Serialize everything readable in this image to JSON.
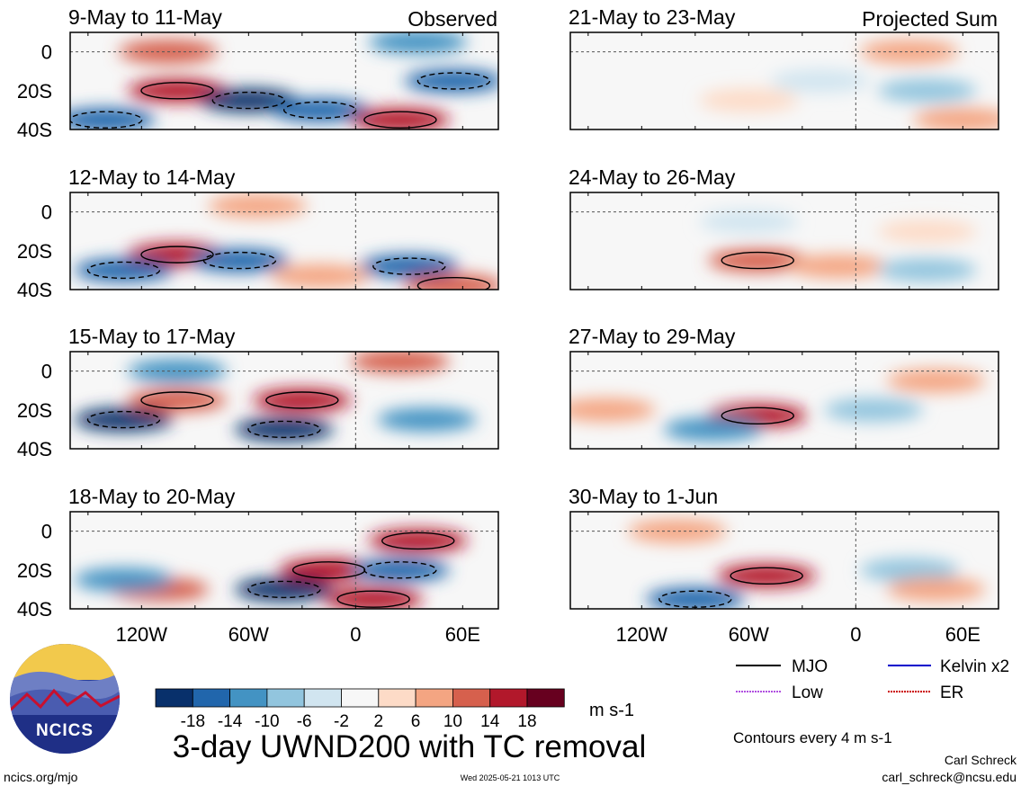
{
  "panels_left_label": "Observed",
  "panels_right_label": "Projected Sum",
  "chart_data": [
    {
      "type": "heatmap",
      "title": "9-May to 11-May",
      "corner_label": "Observed",
      "column": "left",
      "row": 0,
      "yticks": [
        "0",
        "20S",
        "40S"
      ],
      "xticks": [],
      "features": [
        {
          "lon": -105,
          "lat": 0,
          "value": 12
        },
        {
          "lon": -100,
          "lat": -20,
          "value": 16
        },
        {
          "lon": -60,
          "lat": -25,
          "value": -18
        },
        {
          "lon": -20,
          "lat": -30,
          "value": -16
        },
        {
          "lon": 25,
          "lat": -35,
          "value": 18
        },
        {
          "lon": 35,
          "lat": 5,
          "value": -12
        },
        {
          "lon": 55,
          "lat": -15,
          "value": -16
        },
        {
          "lon": -140,
          "lat": -35,
          "value": -14
        }
      ]
    },
    {
      "type": "heatmap",
      "title": "12-May to 14-May",
      "column": "left",
      "row": 1,
      "yticks": [
        "0",
        "20S",
        "40S"
      ],
      "xticks": [],
      "features": [
        {
          "lon": -100,
          "lat": -22,
          "value": 18
        },
        {
          "lon": -130,
          "lat": -30,
          "value": -16
        },
        {
          "lon": -65,
          "lat": -25,
          "value": -14
        },
        {
          "lon": -55,
          "lat": 3,
          "value": 10
        },
        {
          "lon": 30,
          "lat": -28,
          "value": -16
        },
        {
          "lon": 55,
          "lat": -38,
          "value": 14
        },
        {
          "lon": -20,
          "lat": -33,
          "value": 10
        }
      ]
    },
    {
      "type": "heatmap",
      "title": "15-May to 17-May",
      "column": "left",
      "row": 2,
      "yticks": [
        "0",
        "20S",
        "40S"
      ],
      "xticks": [],
      "features": [
        {
          "lon": -130,
          "lat": -25,
          "value": -18
        },
        {
          "lon": -100,
          "lat": -15,
          "value": 14
        },
        {
          "lon": -30,
          "lat": -15,
          "value": 18
        },
        {
          "lon": -40,
          "lat": -30,
          "value": -18
        },
        {
          "lon": 25,
          "lat": 5,
          "value": 12
        },
        {
          "lon": 40,
          "lat": -25,
          "value": -12
        },
        {
          "lon": -100,
          "lat": 0,
          "value": -10
        }
      ]
    },
    {
      "type": "heatmap",
      "title": "18-May to 20-May",
      "column": "left",
      "row": 3,
      "yticks": [
        "0",
        "20S",
        "40S"
      ],
      "xticks": [
        "120W",
        "60W",
        "0",
        "60E"
      ],
      "features": [
        {
          "lon": -15,
          "lat": -20,
          "value": 18
        },
        {
          "lon": -40,
          "lat": -30,
          "value": -18
        },
        {
          "lon": 35,
          "lat": -5,
          "value": 16
        },
        {
          "lon": 25,
          "lat": -20,
          "value": -14
        },
        {
          "lon": -110,
          "lat": -30,
          "value": 12
        },
        {
          "lon": -130,
          "lat": -25,
          "value": -10
        },
        {
          "lon": 10,
          "lat": -35,
          "value": 16
        }
      ]
    },
    {
      "type": "heatmap",
      "title": "21-May to 23-May",
      "corner_label": "Projected Sum",
      "column": "right",
      "row": 0,
      "yticks": [],
      "xticks": [],
      "features": [
        {
          "lon": 30,
          "lat": 0,
          "value": 8
        },
        {
          "lon": 40,
          "lat": -20,
          "value": -6
        },
        {
          "lon": -60,
          "lat": -25,
          "value": 6
        },
        {
          "lon": 60,
          "lat": -35,
          "value": 10
        },
        {
          "lon": -20,
          "lat": -15,
          "value": -4
        }
      ]
    },
    {
      "type": "heatmap",
      "title": "24-May to 26-May",
      "column": "right",
      "row": 1,
      "yticks": [],
      "xticks": [],
      "features": [
        {
          "lon": -55,
          "lat": -25,
          "value": 14
        },
        {
          "lon": -10,
          "lat": -28,
          "value": 8
        },
        {
          "lon": 40,
          "lat": -10,
          "value": 6
        },
        {
          "lon": 40,
          "lat": -30,
          "value": -8
        },
        {
          "lon": -60,
          "lat": -5,
          "value": -4
        }
      ]
    },
    {
      "type": "heatmap",
      "title": "27-May to 29-May",
      "column": "right",
      "row": 2,
      "yticks": [],
      "xticks": [],
      "features": [
        {
          "lon": -55,
          "lat": -23,
          "value": 18
        },
        {
          "lon": -80,
          "lat": -30,
          "value": -10
        },
        {
          "lon": 10,
          "lat": -20,
          "value": -6
        },
        {
          "lon": 45,
          "lat": -5,
          "value": 8
        },
        {
          "lon": -140,
          "lat": -20,
          "value": 8
        }
      ]
    },
    {
      "type": "heatmap",
      "title": "30-May to 1-Jun",
      "column": "right",
      "row": 3,
      "yticks": [],
      "xticks": [
        "120W",
        "60W",
        "0",
        "60E"
      ],
      "features": [
        {
          "lon": -50,
          "lat": -23,
          "value": 18
        },
        {
          "lon": -90,
          "lat": -35,
          "value": -14
        },
        {
          "lon": 30,
          "lat": -20,
          "value": -8
        },
        {
          "lon": 45,
          "lat": -30,
          "value": 10
        },
        {
          "lon": -100,
          "lat": 0,
          "value": 8
        }
      ]
    }
  ],
  "colorbar": {
    "colors": [
      "#08306b",
      "#2166ac",
      "#4393c3",
      "#92c5de",
      "#d1e5f0",
      "#f7f7f7",
      "#fddbc7",
      "#f4a582",
      "#d6604d",
      "#b2182b",
      "#67001f"
    ],
    "ticks": [
      "-18",
      "-14",
      "-10",
      "-6",
      "-2",
      "2",
      "6",
      "10",
      "14",
      "18"
    ],
    "units": "m s-1"
  },
  "legend": {
    "items": [
      {
        "label": "MJO",
        "color": "#000000"
      },
      {
        "label": "Kelvin x2",
        "color": "#0000cc"
      },
      {
        "label": "Low",
        "color": "#b04fe0"
      },
      {
        "label": "ER",
        "color": "#cc0000"
      }
    ],
    "contours_note": "Contours every 4 m s-1"
  },
  "main_title": "3-day UWND200 with TC removal",
  "logo_text": "NCICS",
  "footer": {
    "left": "ncics.org/mjo",
    "center": "Wed 2025-05-21 1013 UTC",
    "author": "Carl Schreck",
    "email": "carl_schreck@ncsu.edu"
  }
}
